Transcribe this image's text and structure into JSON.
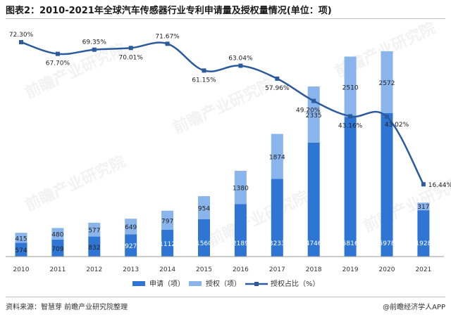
{
  "title": "图表2：2010-2021年全球汽车传感器行业专利申请量及授权量情况(单位：项)",
  "source": "资料来源：智慧芽 前瞻产业研究院整理",
  "credit": "@前瞻经济学人APP",
  "watermark": "前瞻产业研究院",
  "colors": {
    "applications": "#2e75d4",
    "grants": "#8ab4ec",
    "ratio_line": "#2b5b9c"
  },
  "chart_data": {
    "type": "bar",
    "stacked": true,
    "categories": [
      "2010",
      "2011",
      "2012",
      "2013",
      "2014",
      "2015",
      "2016",
      "2017",
      "2018",
      "2019",
      "2020",
      "2021"
    ],
    "series": [
      {
        "name": "申请（项）",
        "values": [
          574,
          709,
          832,
          927,
          1112,
          1560,
          2189,
          3233,
          4746,
          5816,
          5978,
          1928
        ]
      },
      {
        "name": "授权（项）",
        "values": [
          415,
          480,
          577,
          649,
          797,
          954,
          1380,
          1874,
          2335,
          2510,
          2572,
          317
        ]
      }
    ],
    "line_series": {
      "name": "授权占比（%）",
      "values": [
        72.3,
        67.7,
        69.35,
        70.01,
        71.67,
        61.15,
        63.04,
        57.96,
        49.2,
        43.16,
        43.02,
        16.44
      ],
      "labels": [
        "72.30%",
        "67.70%",
        "69.35%",
        "70.01%",
        "71.67%",
        "61.15%",
        "63.04%",
        "57.96%",
        "49.20%",
        "43.16%",
        "43.02%",
        "16.44%"
      ]
    },
    "legend_position": "bottom",
    "grid": false
  }
}
